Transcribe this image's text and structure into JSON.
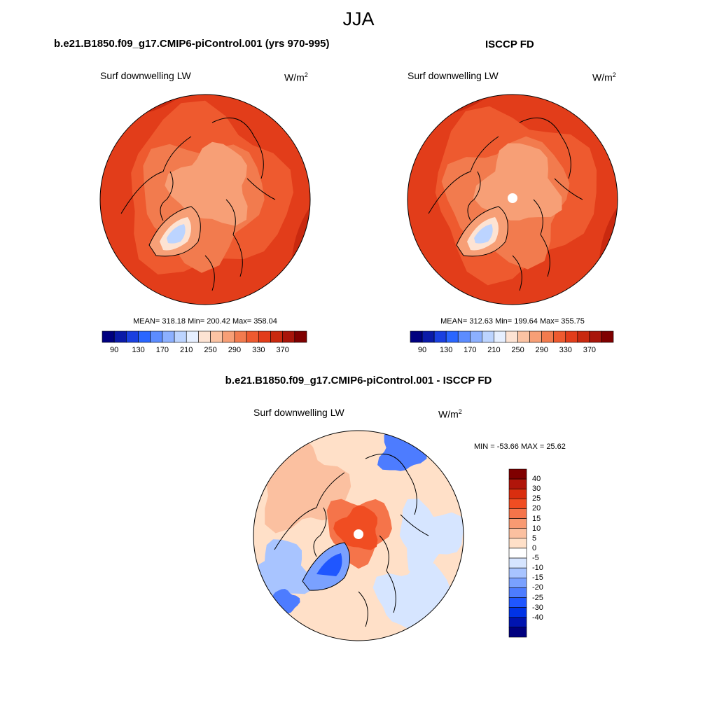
{
  "title": "JJA",
  "units": {
    "base": "W/m",
    "exp": "2"
  },
  "colors": {
    "absolute_scale": [
      "#00007f",
      "#0a1aa8",
      "#1a40e0",
      "#2a66ff",
      "#5c8cff",
      "#8cb0ff",
      "#bcd4ff",
      "#e6efff",
      "#fde3d3",
      "#fbc3a3",
      "#f79f76",
      "#f27b4e",
      "#ee5a2f",
      "#e23d1a",
      "#c9290f",
      "#a8150a",
      "#7f0000"
    ],
    "diff_scale": [
      "#00007f",
      "#0014b0",
      "#0033e6",
      "#1f56ff",
      "#4d7cff",
      "#7aa1ff",
      "#a8c4ff",
      "#d6e5ff",
      "#ffffff",
      "#ffe0c8",
      "#fbc0a0",
      "#f89a72",
      "#f5744a",
      "#f04d22",
      "#d92e0f",
      "#b0150a",
      "#7f0000"
    ]
  },
  "panels": [
    {
      "title": "b.e21.B1850.f09_g17.CMIP6-piControl.001 (yrs 970-995)",
      "variable": "Surf downwelling LW",
      "stats": "MEAN= 318.18  Min= 200.42  Max= 358.04",
      "colorbar_ticks": [
        "90",
        "130",
        "170",
        "210",
        "250",
        "290",
        "330",
        "370"
      ],
      "has_pole_hole": false
    },
    {
      "title": "ISCCP FD",
      "variable": "Surf downwelling LW",
      "stats": "MEAN= 312.63  Min= 199.64  Max= 355.75",
      "colorbar_ticks": [
        "90",
        "130",
        "170",
        "210",
        "250",
        "290",
        "330",
        "370"
      ],
      "has_pole_hole": true
    },
    {
      "title": "b.e21.B1850.f09_g17.CMIP6-piControl.001 - ISCCP FD",
      "variable": "Surf downwelling LW",
      "stats": "MIN = -53.66 MAX =  25.62",
      "colorbar_ticks": [
        "40",
        "30",
        "25",
        "20",
        "15",
        "10",
        "5",
        "0",
        "-5",
        "-10",
        "-15",
        "-20",
        "-25",
        "-30",
        "-40"
      ],
      "has_pole_hole": true
    }
  ]
}
